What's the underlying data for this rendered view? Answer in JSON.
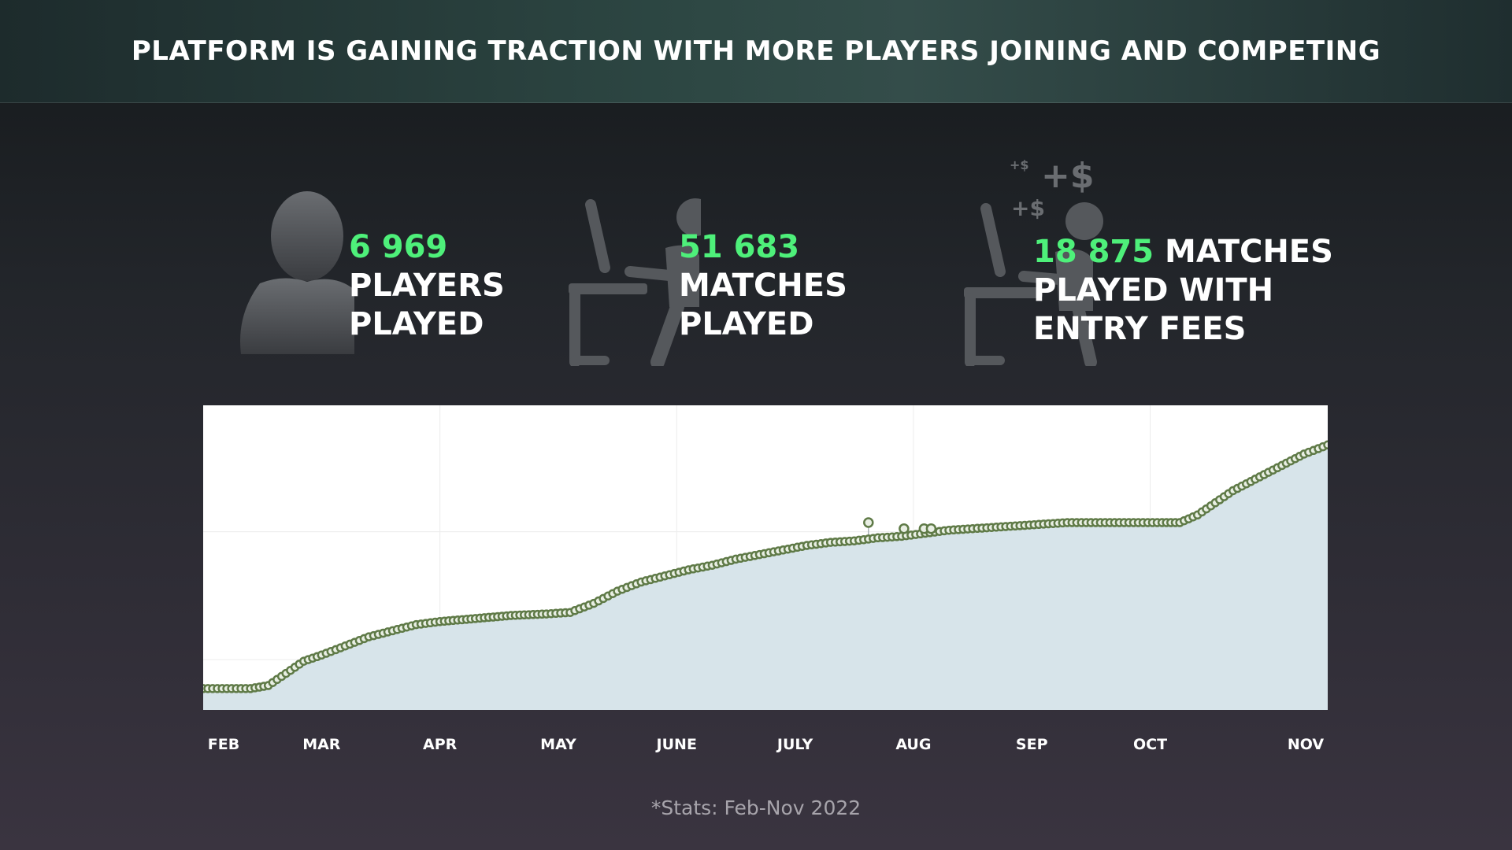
{
  "header": {
    "title": "PLATFORM IS GAINING TRACTION WITH MORE PLAYERS JOINING AND COMPETING"
  },
  "stats": [
    {
      "number": "6 969",
      "line1": "PLAYERS",
      "line2": "PLAYED",
      "icon": "person-silhouette-icon"
    },
    {
      "number": "51 683",
      "line1": "MATCHES",
      "line2": "PLAYED",
      "icon": "gamer-at-desk-icon"
    },
    {
      "number": "18 875",
      "line1_suffix": "MATCHES",
      "line2": "PLAYED WITH",
      "line3": "ENTRY FEES",
      "icon": "gamer-earning-money-icon",
      "money_symbols": [
        "+$",
        "+$",
        "+$"
      ]
    }
  ],
  "colors": {
    "accent": "#4ef07a",
    "line": "#5f7a47",
    "area": "#d7e4ea",
    "icon": "#5a5d61"
  },
  "chart_data": {
    "type": "area",
    "months": [
      "FEB",
      "MAR",
      "APR",
      "MAY",
      "JUNE",
      "JULY",
      "AUG",
      "SEP",
      "OCT",
      "NOV"
    ],
    "x_range": [
      0,
      9.5
    ],
    "ylim": [
      0,
      100
    ],
    "grid": true,
    "points": [
      [
        0.0,
        7
      ],
      [
        0.4,
        7
      ],
      [
        0.55,
        8
      ],
      [
        0.7,
        12
      ],
      [
        0.85,
        16
      ],
      [
        1.0,
        18
      ],
      [
        1.2,
        21
      ],
      [
        1.4,
        24
      ],
      [
        1.6,
        26
      ],
      [
        1.8,
        28
      ],
      [
        2.0,
        29
      ],
      [
        2.3,
        30
      ],
      [
        2.6,
        31
      ],
      [
        2.9,
        31.5
      ],
      [
        3.1,
        32
      ],
      [
        3.3,
        35
      ],
      [
        3.5,
        39
      ],
      [
        3.7,
        42
      ],
      [
        3.9,
        44
      ],
      [
        4.1,
        46
      ],
      [
        4.3,
        47.5
      ],
      [
        4.5,
        49.5
      ],
      [
        4.7,
        51
      ],
      [
        4.9,
        52.5
      ],
      [
        5.1,
        54
      ],
      [
        5.3,
        55
      ],
      [
        5.5,
        55.5
      ],
      [
        5.7,
        56.5
      ],
      [
        5.9,
        57
      ],
      [
        6.1,
        58
      ],
      [
        6.3,
        59
      ],
      [
        6.5,
        59.5
      ],
      [
        6.7,
        60
      ],
      [
        6.9,
        60.5
      ],
      [
        7.1,
        61
      ],
      [
        7.3,
        61.5
      ],
      [
        7.5,
        61.5
      ],
      [
        7.7,
        61.5
      ],
      [
        7.9,
        61.5
      ],
      [
        8.1,
        61.5
      ],
      [
        8.25,
        61.5
      ],
      [
        8.4,
        64
      ],
      [
        8.55,
        68
      ],
      [
        8.7,
        72
      ],
      [
        8.85,
        75
      ],
      [
        9.0,
        78
      ],
      [
        9.15,
        81
      ],
      [
        9.3,
        84
      ],
      [
        9.5,
        87
      ]
    ],
    "outliers": [
      [
        5.62,
        61.5
      ],
      [
        5.92,
        59.5
      ],
      [
        6.09,
        59.5
      ],
      [
        6.15,
        59.5
      ]
    ]
  },
  "footnote": "*Stats: Feb-Nov 2022"
}
